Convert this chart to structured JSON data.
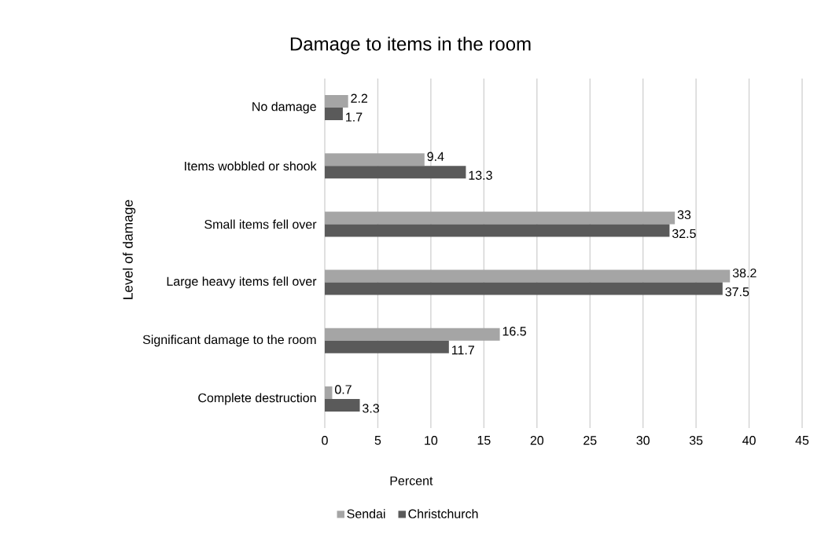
{
  "chart_data": {
    "type": "bar",
    "orientation": "horizontal",
    "title": "Damage to items in the room",
    "xlabel": "Percent",
    "ylabel": "Level of damage",
    "categories": [
      "No damage",
      "Items wobbled or shook",
      "Small items fell over",
      "Large heavy items fell over",
      "Significant damage to the room",
      "Complete destruction"
    ],
    "series": [
      {
        "name": "Sendai",
        "color": "#a5a5a5",
        "values": [
          2.2,
          9.4,
          33,
          38.2,
          16.5,
          0.7
        ]
      },
      {
        "name": "Christchurch",
        "color": "#5a5a5a",
        "values": [
          1.7,
          13.3,
          32.5,
          37.5,
          11.7,
          3.3
        ]
      }
    ],
    "xlim": [
      0,
      45
    ],
    "xticks": [
      0,
      5,
      10,
      15,
      20,
      25,
      30,
      35,
      40,
      45
    ],
    "grid": "x",
    "legend": "bottom",
    "data_labels": true
  }
}
